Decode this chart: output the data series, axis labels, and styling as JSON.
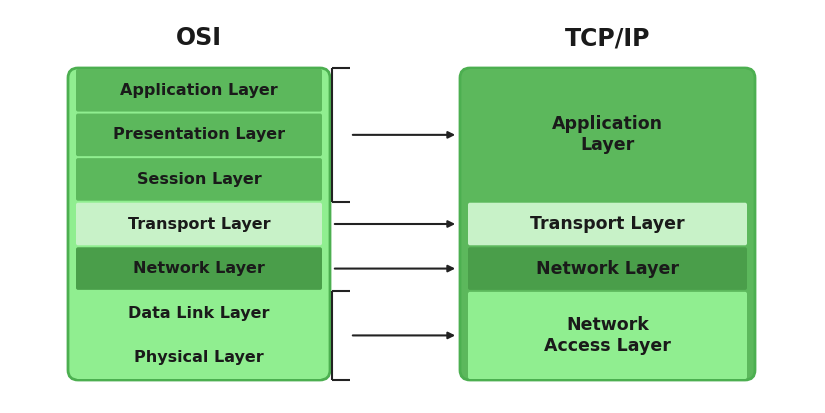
{
  "background_color": "#ffffff",
  "osi_title": "OSI",
  "tcpip_title": "TCP/IP",
  "osi_outer_fill": "#90ee90",
  "tcp_outer_fill": "#5cb85c",
  "osi_layers": [
    {
      "label": "Application Layer",
      "color": "#5cb85c"
    },
    {
      "label": "Presentation Layer",
      "color": "#5cb85c"
    },
    {
      "label": "Session Layer",
      "color": "#5cb85c"
    },
    {
      "label": "Transport Layer",
      "color": "#c8f2c8"
    },
    {
      "label": "Network Layer",
      "color": "#4a9e4a"
    },
    {
      "label": "Data Link Layer",
      "color": "#90ee90"
    },
    {
      "label": "Physical Layer",
      "color": "#90ee90"
    }
  ],
  "tcpip_layers": [
    {
      "label": "Application\nLayer",
      "color": "#5cb85c",
      "span": 3
    },
    {
      "label": "Transport Layer",
      "color": "#c8f2c8",
      "span": 1
    },
    {
      "label": "Network Layer",
      "color": "#4a9e4a",
      "span": 1
    },
    {
      "label": "Network\nAccess Layer",
      "color": "#90ee90",
      "span": 2
    }
  ],
  "arrow_color": "#222222",
  "text_color": "#1a1a1a",
  "title_fontsize": 17,
  "layer_fontsize": 11.5,
  "outer_border_color": "#4caf50",
  "outer_border_lw": 2.0
}
